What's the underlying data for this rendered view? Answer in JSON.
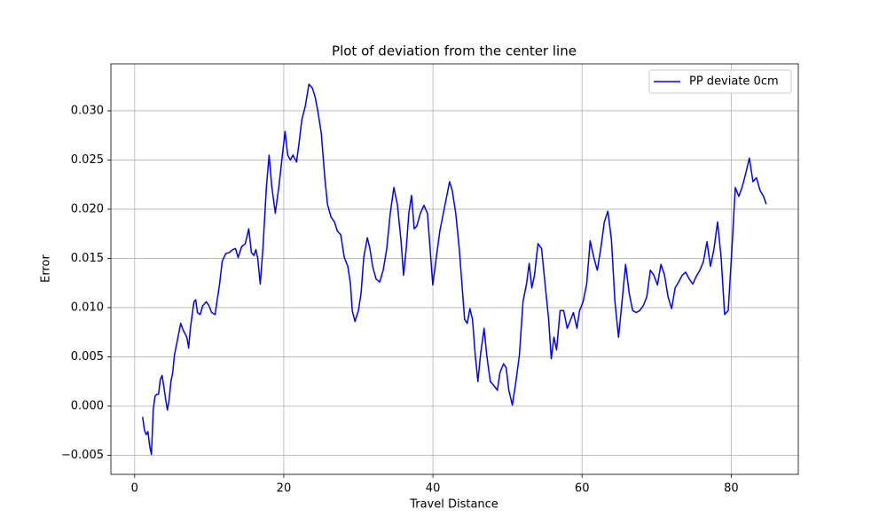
{
  "chart_data": {
    "type": "line",
    "title": "Plot of deviation from the center line",
    "x_label": "Travel Distance",
    "y_label": "Error",
    "x": [
      1.07,
      1.3,
      1.54,
      1.78,
      2.02,
      2.25,
      2.49,
      2.73,
      2.97,
      3.2,
      3.44,
      3.68,
      3.91,
      4.15,
      4.39,
      4.63,
      4.86,
      5.1,
      5.34,
      5.81,
      6.17,
      6.52,
      7.0,
      7.24,
      7.47,
      7.95,
      8.19,
      8.42,
      8.78,
      9.13,
      9.61,
      9.96,
      10.32,
      10.79,
      11.03,
      11.39,
      11.74,
      12.22,
      12.69,
      13.17,
      13.52,
      13.88,
      14.35,
      14.83,
      15.3,
      15.66,
      16.01,
      16.25,
      16.49,
      16.84,
      17.2,
      17.67,
      18.03,
      18.39,
      18.86,
      19.34,
      19.81,
      20.17,
      20.52,
      20.88,
      21.23,
      21.71,
      22.06,
      22.42,
      22.89,
      23.37,
      23.84,
      24.2,
      24.56,
      25.03,
      25.5,
      25.86,
      26.33,
      26.81,
      27.16,
      27.64,
      28.11,
      28.59,
      28.94,
      29.18,
      29.54,
      30.01,
      30.37,
      30.72,
      31.2,
      31.55,
      31.91,
      32.38,
      32.86,
      33.33,
      33.81,
      34.28,
      34.76,
      35.23,
      35.71,
      36.06,
      36.42,
      36.77,
      37.13,
      37.49,
      37.84,
      38.32,
      38.79,
      39.26,
      39.62,
      39.98,
      40.45,
      40.93,
      41.4,
      41.87,
      42.23,
      42.59,
      43.06,
      43.53,
      43.89,
      44.25,
      44.6,
      44.96,
      45.31,
      45.67,
      46.03,
      46.38,
      46.86,
      47.21,
      47.69,
      48.16,
      48.64,
      48.99,
      49.47,
      49.82,
      50.18,
      50.65,
      51.13,
      51.6,
      52.08,
      52.55,
      52.91,
      53.26,
      53.62,
      54.09,
      54.57,
      55.04,
      55.52,
      55.87,
      56.23,
      56.58,
      57.06,
      57.53,
      58.01,
      58.48,
      58.84,
      59.31,
      59.67,
      60.14,
      60.62,
      61.09,
      61.57,
      62.04,
      62.51,
      62.99,
      63.46,
      63.94,
      64.41,
      64.89,
      65.36,
      65.84,
      66.31,
      66.79,
      67.26,
      67.73,
      68.21,
      68.68,
      69.16,
      69.63,
      70.11,
      70.58,
      71.06,
      71.53,
      72.01,
      72.48,
      72.95,
      73.43,
      73.9,
      74.38,
      74.85,
      75.33,
      75.8,
      76.28,
      76.75,
      77.22,
      77.7,
      78.17,
      78.65,
      79.12,
      79.6,
      80.07,
      80.55,
      81.02,
      81.49,
      81.97,
      82.44,
      82.92,
      83.39,
      83.87,
      84.34,
      84.7
    ],
    "series": [
      {
        "name": "PP deviate 0cm",
        "color": "blue",
        "values": [
          -0.0011,
          -0.0024,
          -0.0029,
          -0.0026,
          -0.0041,
          -0.0049,
          -0.0004,
          0.001,
          0.0012,
          0.0012,
          0.0027,
          0.0031,
          0.002,
          0.0007,
          -0.0004,
          0.0007,
          0.0025,
          0.0034,
          0.0052,
          0.007,
          0.0084,
          0.0077,
          0.007,
          0.0059,
          0.0079,
          0.0106,
          0.0108,
          0.0095,
          0.0093,
          0.0102,
          0.0106,
          0.0102,
          0.0095,
          0.0093,
          0.0106,
          0.0124,
          0.0147,
          0.0155,
          0.0156,
          0.0159,
          0.016,
          0.0151,
          0.0162,
          0.0165,
          0.018,
          0.0156,
          0.0153,
          0.0159,
          0.0151,
          0.0124,
          0.016,
          0.0223,
          0.0255,
          0.0223,
          0.0196,
          0.0223,
          0.0255,
          0.0279,
          0.0255,
          0.025,
          0.0255,
          0.0248,
          0.0268,
          0.0291,
          0.0305,
          0.0327,
          0.0323,
          0.0314,
          0.03,
          0.0277,
          0.0232,
          0.0205,
          0.0192,
          0.0187,
          0.0178,
          0.0174,
          0.0151,
          0.0142,
          0.0124,
          0.0097,
          0.0086,
          0.0097,
          0.0115,
          0.0151,
          0.0171,
          0.016,
          0.0142,
          0.0129,
          0.0126,
          0.0138,
          0.016,
          0.0196,
          0.0222,
          0.0205,
          0.0169,
          0.0133,
          0.016,
          0.0196,
          0.0214,
          0.018,
          0.0183,
          0.0196,
          0.0204,
          0.0196,
          0.016,
          0.0123,
          0.0151,
          0.0178,
          0.0196,
          0.0214,
          0.0228,
          0.0219,
          0.0196,
          0.016,
          0.0124,
          0.0088,
          0.0084,
          0.0099,
          0.0088,
          0.0052,
          0.0025,
          0.0052,
          0.0079,
          0.0052,
          0.0025,
          0.0021,
          0.0016,
          0.0034,
          0.0043,
          0.0039,
          0.0016,
          0.0001,
          0.0025,
          0.0052,
          0.0106,
          0.0124,
          0.0145,
          0.012,
          0.0133,
          0.0165,
          0.016,
          0.0124,
          0.0088,
          0.0048,
          0.007,
          0.0057,
          0.0097,
          0.0097,
          0.0079,
          0.0088,
          0.0095,
          0.0079,
          0.0097,
          0.0106,
          0.0124,
          0.0168,
          0.0151,
          0.0138,
          0.016,
          0.0187,
          0.0198,
          0.0169,
          0.0106,
          0.007,
          0.0106,
          0.0144,
          0.0115,
          0.0097,
          0.0095,
          0.0097,
          0.0102,
          0.0111,
          0.0138,
          0.0133,
          0.0123,
          0.0144,
          0.0133,
          0.0111,
          0.0099,
          0.012,
          0.0126,
          0.0133,
          0.0136,
          0.0129,
          0.0124,
          0.0132,
          0.0138,
          0.0147,
          0.0167,
          0.0142,
          0.016,
          0.0187,
          0.0151,
          0.0093,
          0.0097,
          0.0156,
          0.0222,
          0.0213,
          0.0223,
          0.0237,
          0.0252,
          0.0228,
          0.0232,
          0.0219,
          0.0213,
          0.0205
        ]
      }
    ],
    "xlim": [
      -3.19,
      89.0
    ],
    "xticks": [
      0,
      20,
      40,
      60,
      80
    ],
    "ylim": [
      -0.00694,
      0.03477
    ],
    "yticks": [
      {
        "value": -0.005,
        "label": "−0.005"
      },
      {
        "value": 0,
        "label": "0.000"
      },
      0.005,
      {
        "value": 0.01,
        "label": "0.010"
      },
      0.015,
      {
        "value": 0.02,
        "label": "0.020"
      },
      0.025,
      {
        "value": 0.03,
        "label": "0.030"
      }
    ],
    "grid": true,
    "legend": "upper right"
  }
}
